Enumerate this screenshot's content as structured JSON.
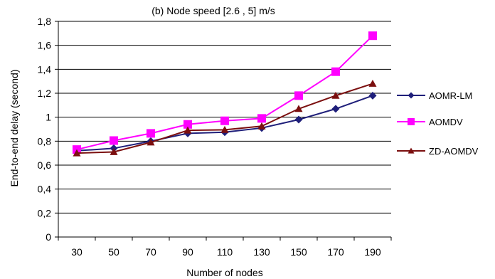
{
  "chart_data": {
    "type": "line",
    "title": "(b) Node speed  [2.6 ,  5] m/s",
    "xlabel": "Number of nodes",
    "ylabel": "End-to-end delay (second)",
    "categories": [
      "30",
      "50",
      "70",
      "90",
      "110",
      "130",
      "150",
      "170",
      "190"
    ],
    "ylim": [
      0,
      1.8
    ],
    "yticks": [
      "0",
      "0,2",
      "0,4",
      "0,6",
      "0,8",
      "1",
      "1,2",
      "1,4",
      "1,6",
      "1,8"
    ],
    "grid": "horizontal",
    "legend_position": "right",
    "series": [
      {
        "name": "AOMR-LM",
        "marker": "diamond",
        "color": "#1f1f7a",
        "values": [
          0.72,
          0.74,
          0.8,
          0.865,
          0.875,
          0.91,
          0.98,
          1.07,
          1.18
        ]
      },
      {
        "name": "AOMDV",
        "marker": "square",
        "color": "#ff00ff",
        "values": [
          0.73,
          0.805,
          0.865,
          0.94,
          0.97,
          0.99,
          1.18,
          1.38,
          1.68
        ]
      },
      {
        "name": "ZD-AOMDV",
        "marker": "triangle",
        "color": "#7b0f0f",
        "values": [
          0.7,
          0.71,
          0.79,
          0.89,
          0.895,
          0.925,
          1.07,
          1.18,
          1.28
        ]
      }
    ]
  }
}
